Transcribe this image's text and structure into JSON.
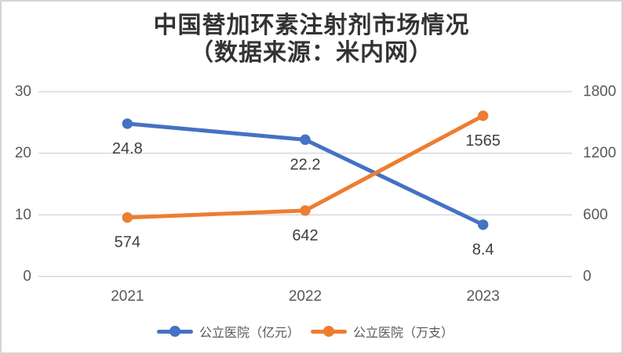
{
  "chart_data": {
    "type": "line",
    "title": "中国替加环素注射剂市场情况",
    "subtitle": "（数据来源：米内网）",
    "categories": [
      "2021",
      "2022",
      "2023"
    ],
    "series": [
      {
        "name": "公立医院（亿元）",
        "values": [
          24.8,
          22.2,
          8.4
        ],
        "labels": [
          "24.8",
          "22.2",
          "8.4"
        ],
        "color": "#4472C4",
        "axis": "left",
        "marker": "circle"
      },
      {
        "name": "公立医院（万支）",
        "values": [
          574,
          642,
          1565
        ],
        "labels": [
          "574",
          "642",
          "1565"
        ],
        "color": "#ED7D31",
        "axis": "right",
        "marker": "circle"
      }
    ],
    "axis_left": {
      "min": 0,
      "max": 30,
      "ticks": [
        0,
        10,
        20,
        30
      ]
    },
    "axis_right": {
      "min": 0,
      "max": 1800,
      "ticks": [
        0,
        600,
        1200,
        1800
      ]
    },
    "grid": "horizontal",
    "legend_position": "bottom",
    "colors": {
      "grid": "#D9D9D9",
      "axis_label": "#595959",
      "data_label": "#3F3F3F",
      "title": "#333333",
      "frame_border": "#D4D4D4",
      "background": "#FFFFFF"
    }
  }
}
